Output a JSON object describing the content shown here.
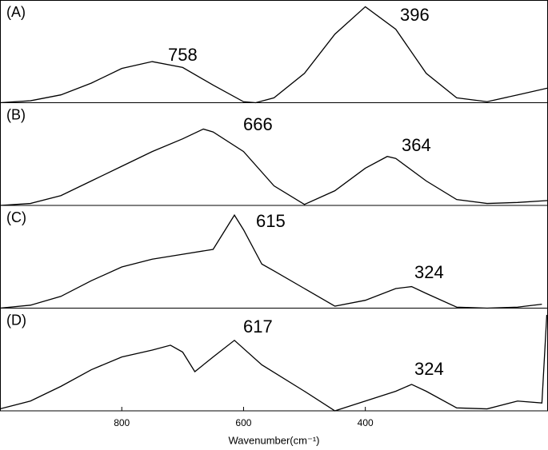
{
  "chart_data": [
    {
      "type": "line",
      "label": "(A)",
      "color": "#000000",
      "xlim": [
        1000,
        100
      ],
      "ylim": [
        0,
        1
      ],
      "x": [
        1000,
        950,
        900,
        850,
        800,
        750,
        700,
        650,
        600,
        580,
        550,
        500,
        450,
        400,
        350,
        300,
        250,
        200,
        150,
        100
      ],
      "values": [
        0.0,
        0.02,
        0.08,
        0.2,
        0.35,
        0.42,
        0.36,
        0.18,
        0.01,
        0.0,
        0.05,
        0.3,
        0.7,
        0.98,
        0.75,
        0.3,
        0.05,
        0.01,
        0.08,
        0.15
      ],
      "annotations": [
        "758",
        "396"
      ]
    },
    {
      "type": "line",
      "label": "(B)",
      "color": "#000000",
      "xlim": [
        1000,
        100
      ],
      "ylim": [
        0,
        1
      ],
      "x": [
        1000,
        950,
        900,
        850,
        800,
        750,
        700,
        666,
        650,
        600,
        550,
        500,
        450,
        400,
        364,
        350,
        300,
        250,
        200,
        150,
        100
      ],
      "values": [
        0.0,
        0.02,
        0.1,
        0.25,
        0.4,
        0.55,
        0.68,
        0.78,
        0.75,
        0.55,
        0.2,
        0.01,
        0.15,
        0.38,
        0.5,
        0.48,
        0.25,
        0.06,
        0.02,
        0.03,
        0.05
      ],
      "annotations": [
        "666",
        "364"
      ]
    },
    {
      "type": "line",
      "label": "(C)",
      "color": "#000000",
      "xlim": [
        1000,
        100
      ],
      "ylim": [
        0,
        1
      ],
      "x": [
        1000,
        950,
        900,
        850,
        800,
        750,
        700,
        650,
        615,
        600,
        570,
        550,
        500,
        450,
        400,
        350,
        324,
        300,
        250,
        200,
        150,
        110
      ],
      "values": [
        0.0,
        0.03,
        0.12,
        0.28,
        0.42,
        0.5,
        0.55,
        0.6,
        0.95,
        0.8,
        0.45,
        0.38,
        0.2,
        0.02,
        0.08,
        0.2,
        0.22,
        0.15,
        0.01,
        0.0,
        0.01,
        0.04
      ],
      "annotations": [
        "615",
        "324"
      ]
    },
    {
      "type": "line",
      "label": "(D)",
      "color": "#000000",
      "xlim": [
        1000,
        100
      ],
      "ylim": [
        0,
        1
      ],
      "x": [
        1000,
        950,
        900,
        850,
        800,
        750,
        720,
        700,
        680,
        650,
        615,
        570,
        500,
        450,
        400,
        350,
        324,
        300,
        250,
        200,
        150,
        110,
        102
      ],
      "values": [
        0.02,
        0.1,
        0.25,
        0.42,
        0.55,
        0.62,
        0.67,
        0.6,
        0.4,
        0.55,
        0.72,
        0.47,
        0.2,
        0.0,
        0.1,
        0.2,
        0.27,
        0.2,
        0.03,
        0.02,
        0.1,
        0.08,
        0.98
      ],
      "annotations": [
        "617",
        "324"
      ],
      "xticks": [
        800,
        600,
        400
      ],
      "x_label": "Wavenumber(cm⁻¹)"
    }
  ]
}
